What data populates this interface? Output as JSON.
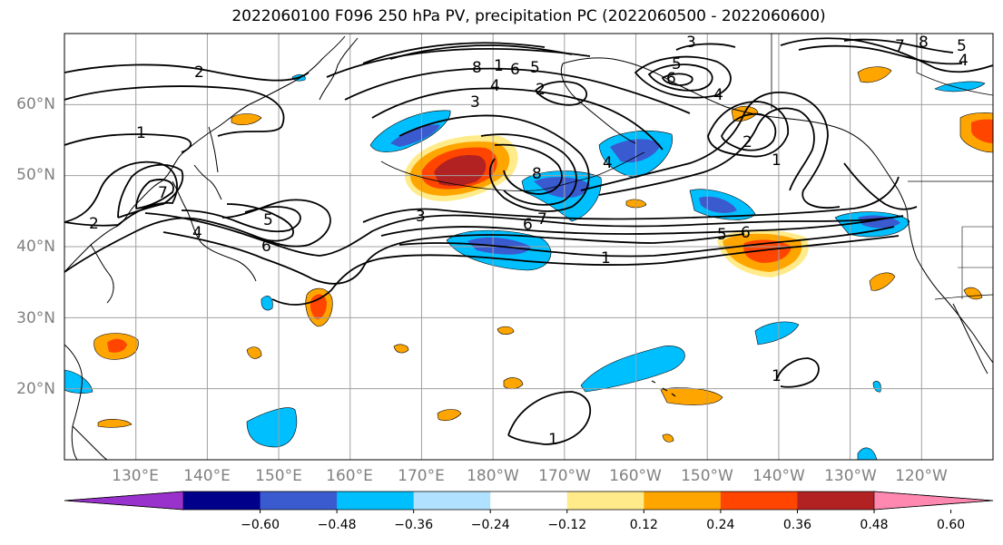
{
  "title": "2022060100 F096 250 hPa PV, precipitation PC (2022060500 - 2022060600)",
  "map": {
    "region": "North Pacific",
    "projection": "equirectangular",
    "lon_range_east": [
      120,
      250
    ],
    "lat_range": [
      10,
      70
    ],
    "lat_labels": [
      "20°N",
      "30°N",
      "40°N",
      "50°N",
      "60°N"
    ],
    "lon_labels": [
      "130°E",
      "140°E",
      "150°E",
      "160°E",
      "170°E",
      "180°W",
      "170°W",
      "160°W",
      "150°W",
      "140°W",
      "130°W",
      "120°W"
    ],
    "grid": true,
    "axis_label_color": "#808080"
  },
  "contour_labels": [
    "1",
    "2",
    "3",
    "4",
    "5",
    "6",
    "7",
    "8"
  ],
  "colorbar": {
    "tick_labels": [
      "−0.60",
      "−0.48",
      "−0.36",
      "−0.24",
      "−0.12",
      "0.12",
      "0.24",
      "0.36",
      "0.48",
      "0.60"
    ],
    "colors": [
      "#9932cc",
      "#00008b",
      "#3a5bd0",
      "#00bfff",
      "#b0e2ff",
      "#ffffff",
      "#ffeb8a",
      "#ffa500",
      "#ff4500",
      "#b22222",
      "#ff88b0"
    ]
  },
  "colors": {
    "contour": "#000000",
    "coast": "#000000",
    "grid": "#a0a0a0"
  }
}
